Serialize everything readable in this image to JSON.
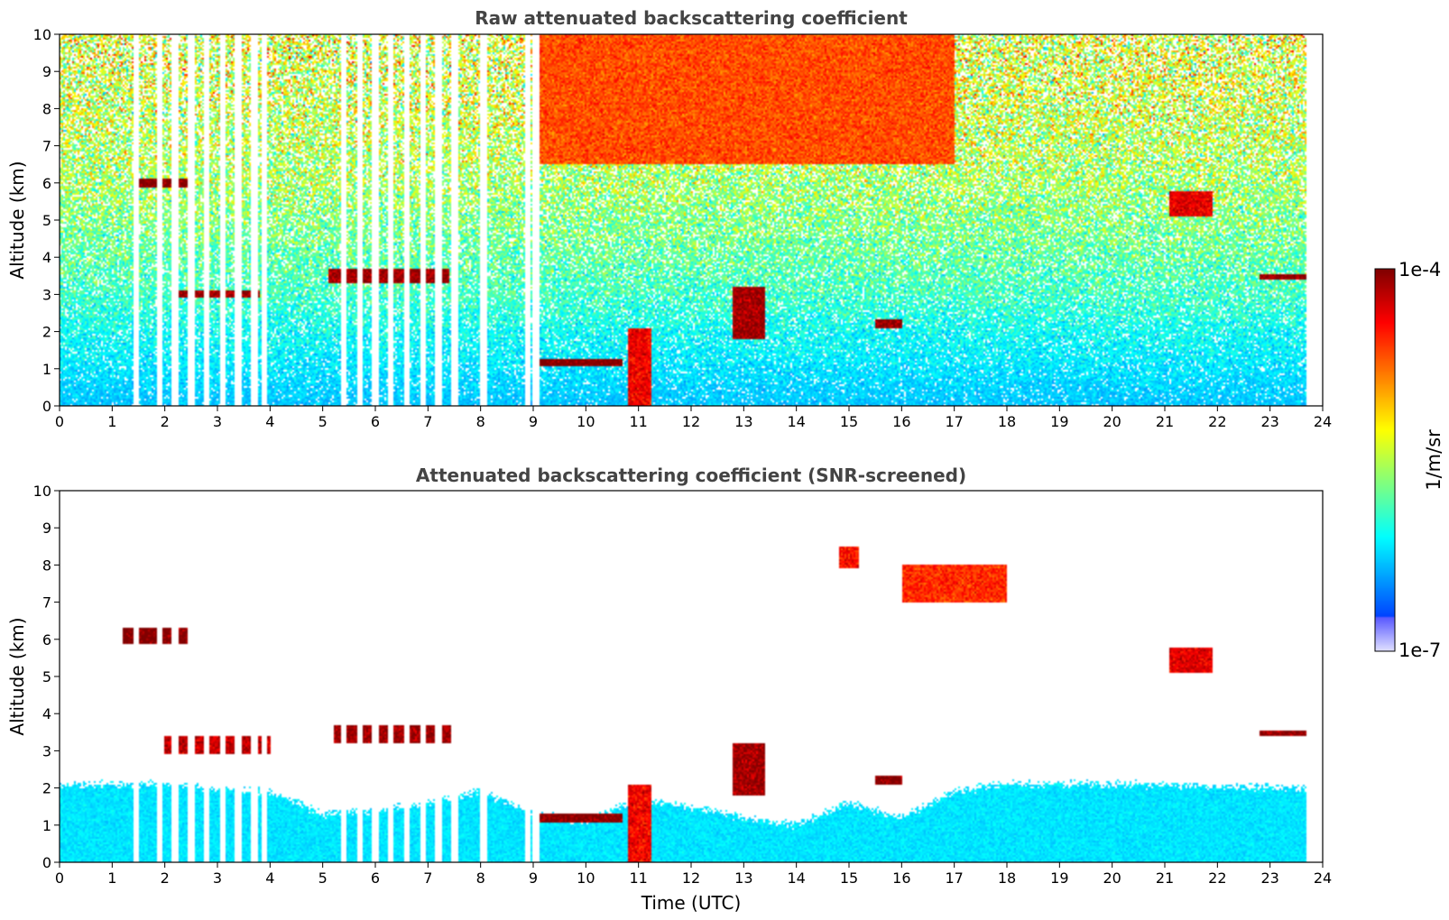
{
  "chart_data": [
    {
      "type": "heatmap",
      "title": "Raw attenuated backscattering coefficient",
      "xlabel": "",
      "ylabel": "Altitude (km)",
      "xlim": [
        0,
        24
      ],
      "ylim": [
        0,
        10
      ],
      "xticks": [
        "0",
        "1",
        "2",
        "3",
        "4",
        "5",
        "6",
        "7",
        "8",
        "9",
        "10",
        "11",
        "12",
        "13",
        "14",
        "15",
        "16",
        "17",
        "18",
        "19",
        "20",
        "21",
        "22",
        "23",
        "24"
      ],
      "yticks": [
        "0",
        "1",
        "2",
        "3",
        "4",
        "5",
        "6",
        "7",
        "8",
        "9",
        "10"
      ],
      "data_end_time": 23.7,
      "missing_profiles_time": [
        1.45,
        1.9,
        2.2,
        2.5,
        2.8,
        3.1,
        3.4,
        3.7,
        3.9,
        5.4,
        5.7,
        6.0,
        6.3,
        6.6,
        6.9,
        7.2,
        7.5,
        8.05,
        8.9,
        9.05
      ],
      "background_profile": [
        {
          "altitude": 0.0,
          "log10_value": -6.05
        },
        {
          "altitude": 1.0,
          "log10_value": -5.95
        },
        {
          "altitude": 2.0,
          "log10_value": -5.85
        },
        {
          "altitude": 3.0,
          "log10_value": -5.7
        },
        {
          "altitude": 4.5,
          "log10_value": -5.55
        },
        {
          "altitude": 6.0,
          "log10_value": -5.4
        },
        {
          "altitude": 8.0,
          "log10_value": -5.28
        },
        {
          "altitude": 10.0,
          "log10_value": -5.2
        }
      ],
      "features": [
        {
          "name": "cirrus-upper-noise",
          "t0": 9.0,
          "t1": 17.0,
          "z0": 6.5,
          "z1": 10.0,
          "log10_value": -4.6
        },
        {
          "name": "cloud-6km",
          "t0": 1.5,
          "t1": 2.5,
          "z0": 5.85,
          "z1": 6.1,
          "log10_value": -4.0
        },
        {
          "name": "layer-3km",
          "t0": 2.2,
          "t1": 3.8,
          "z0": 2.9,
          "z1": 3.1,
          "log10_value": -4.1
        },
        {
          "name": "layer-3.5km",
          "t0": 5.1,
          "t1": 7.4,
          "z0": 3.3,
          "z1": 3.7,
          "log10_value": -4.1
        },
        {
          "name": "cloud-base-1km",
          "t0": 9.0,
          "t1": 10.7,
          "z0": 1.05,
          "z1": 1.25,
          "log10_value": -4.0
        },
        {
          "name": "precipitation-11h",
          "t0": 10.8,
          "t1": 11.25,
          "z0": 0.0,
          "z1": 2.1,
          "log10_value": -4.35
        },
        {
          "name": "cloud-13h",
          "t0": 12.8,
          "t1": 13.4,
          "z0": 1.8,
          "z1": 3.2,
          "log10_value": -4.1
        },
        {
          "name": "cloud-2.2km-16h",
          "t0": 15.5,
          "t1": 16.0,
          "z0": 2.1,
          "z1": 2.35,
          "log10_value": -4.05
        },
        {
          "name": "cirrus-7.5km",
          "t0": 15.8,
          "t1": 16.8,
          "z0": 6.9,
          "z1": 7.8,
          "log10_value": -4.5
        },
        {
          "name": "cloud-5.5km-21h",
          "t0": 21.1,
          "t1": 21.9,
          "z0": 5.1,
          "z1": 5.8,
          "log10_value": -4.3
        },
        {
          "name": "layer-3.4km-23h",
          "t0": 22.8,
          "t1": 23.7,
          "z0": 3.4,
          "z1": 3.55,
          "log10_value": -4.05
        }
      ]
    },
    {
      "type": "heatmap",
      "title": "Attenuated backscattering coefficient (SNR-screened)",
      "xlabel": "Time (UTC)",
      "ylabel": "Altitude (km)",
      "xlim": [
        0,
        24
      ],
      "ylim": [
        0,
        10
      ],
      "xticks": [
        "0",
        "1",
        "2",
        "3",
        "4",
        "5",
        "6",
        "7",
        "8",
        "9",
        "10",
        "11",
        "12",
        "13",
        "14",
        "15",
        "16",
        "17",
        "18",
        "19",
        "20",
        "21",
        "22",
        "23",
        "24"
      ],
      "yticks": [
        "0",
        "1",
        "2",
        "3",
        "4",
        "5",
        "6",
        "7",
        "8",
        "9",
        "10"
      ],
      "data_end_time": 23.7,
      "missing_profiles_time": [
        1.45,
        1.9,
        2.2,
        2.5,
        2.8,
        3.1,
        3.4,
        3.7,
        3.9,
        5.4,
        5.7,
        6.0,
        6.3,
        6.6,
        6.9,
        7.2,
        7.5,
        8.05,
        8.9,
        9.05
      ],
      "valid_top_altitude": [
        {
          "time": 0.0,
          "altitude": 2.1
        },
        {
          "time": 2.0,
          "altitude": 2.1
        },
        {
          "time": 3.0,
          "altitude": 2.0
        },
        {
          "time": 4.0,
          "altitude": 1.9
        },
        {
          "time": 5.0,
          "altitude": 1.3
        },
        {
          "time": 6.0,
          "altitude": 1.4
        },
        {
          "time": 7.0,
          "altitude": 1.6
        },
        {
          "time": 8.0,
          "altitude": 1.9
        },
        {
          "time": 9.0,
          "altitude": 1.3
        },
        {
          "time": 10.0,
          "altitude": 1.1
        },
        {
          "time": 11.0,
          "altitude": 1.7
        },
        {
          "time": 12.0,
          "altitude": 1.5
        },
        {
          "time": 13.0,
          "altitude": 1.2
        },
        {
          "time": 14.0,
          "altitude": 1.0
        },
        {
          "time": 15.0,
          "altitude": 1.6
        },
        {
          "time": 16.0,
          "altitude": 1.2
        },
        {
          "time": 17.0,
          "altitude": 1.9
        },
        {
          "time": 18.0,
          "altitude": 2.1
        },
        {
          "time": 20.0,
          "altitude": 2.1
        },
        {
          "time": 23.7,
          "altitude": 2.0
        }
      ],
      "background_log10_value": -5.95,
      "features": [
        {
          "name": "cloud-6km",
          "t0": 1.2,
          "t1": 2.5,
          "z0": 5.85,
          "z1": 6.3,
          "log10_value": -4.0
        },
        {
          "name": "layer-3km",
          "t0": 2.0,
          "t1": 4.0,
          "z0": 2.9,
          "z1": 3.4,
          "log10_value": -4.2
        },
        {
          "name": "layer-3.5km",
          "t0": 5.2,
          "t1": 7.5,
          "z0": 3.2,
          "z1": 3.7,
          "log10_value": -4.1
        },
        {
          "name": "cloud-base-1km",
          "t0": 9.0,
          "t1": 10.7,
          "z0": 1.05,
          "z1": 1.3,
          "log10_value": -4.0
        },
        {
          "name": "precipitation-11h",
          "t0": 10.8,
          "t1": 11.25,
          "z0": 0.0,
          "z1": 2.1,
          "log10_value": -4.35
        },
        {
          "name": "cloud-13h",
          "t0": 12.8,
          "t1": 13.4,
          "z0": 1.8,
          "z1": 3.2,
          "log10_value": -4.1
        },
        {
          "name": "cirrus-8km",
          "t0": 14.8,
          "t1": 15.2,
          "z0": 7.9,
          "z1": 8.5,
          "log10_value": -4.4
        },
        {
          "name": "cloud-2.2km-16h",
          "t0": 15.5,
          "t1": 16.0,
          "z0": 2.1,
          "z1": 2.35,
          "log10_value": -4.05
        },
        {
          "name": "cirrus-7.5km",
          "t0": 16.0,
          "t1": 18.0,
          "z0": 7.0,
          "z1": 8.0,
          "log10_value": -4.5
        },
        {
          "name": "cloud-5.5km-21h",
          "t0": 21.1,
          "t1": 21.9,
          "z0": 5.1,
          "z1": 5.8,
          "log10_value": -4.3
        },
        {
          "name": "layer-3.4km-23h",
          "t0": 22.8,
          "t1": 23.7,
          "z0": 3.4,
          "z1": 3.55,
          "log10_value": -4.05
        }
      ]
    }
  ],
  "colorbar": {
    "min_label": "1e-7",
    "max_label": "1e-4",
    "label": "1/m/sr",
    "log10_min": -7,
    "log10_max": -4,
    "colormap": "jet"
  }
}
